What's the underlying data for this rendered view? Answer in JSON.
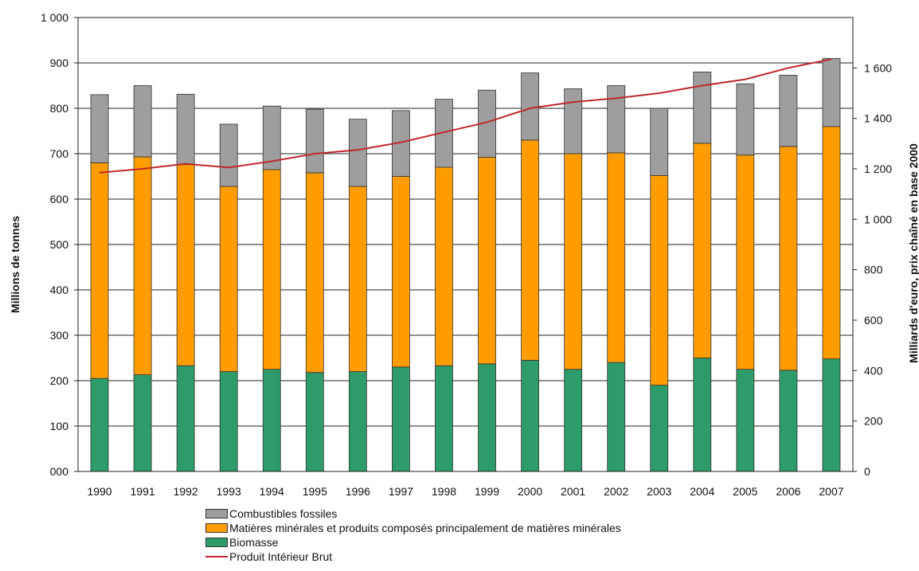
{
  "chart_data": {
    "type": "bar",
    "stacked": true,
    "categories": [
      "1990",
      "1991",
      "1992",
      "1993",
      "1994",
      "1995",
      "1996",
      "1997",
      "1998",
      "1999",
      "2000",
      "2001",
      "2002",
      "2003",
      "2004",
      "2005",
      "2006",
      "2007"
    ],
    "series": [
      {
        "name": "Biomasse",
        "color": "#2e9b6a",
        "values": [
          205,
          213,
          233,
          220,
          225,
          218,
          220,
          230,
          233,
          237,
          245,
          225,
          240,
          190,
          250,
          225,
          223,
          248
        ]
      },
      {
        "name": "Matières minérales et produits composés principalement de matières minérales",
        "color": "#ff9c00",
        "values": [
          475,
          480,
          443,
          408,
          440,
          440,
          408,
          420,
          437,
          455,
          485,
          475,
          462,
          462,
          473,
          472,
          493,
          512
        ]
      },
      {
        "name": "Combustibles fossiles",
        "color": "#9e9e9e",
        "values": [
          150,
          157,
          155,
          137,
          140,
          140,
          148,
          145,
          150,
          148,
          148,
          143,
          148,
          148,
          157,
          157,
          157,
          150
        ]
      }
    ],
    "line_series": {
      "name": "Produit Intérieur Brut",
      "color": "#c0282d",
      "axis": "right",
      "values": [
        1185,
        1200,
        1220,
        1205,
        1230,
        1260,
        1275,
        1305,
        1345,
        1385,
        1440,
        1465,
        1480,
        1500,
        1530,
        1555,
        1600,
        1635
      ]
    },
    "left_axis": {
      "label": "Millions de tonnes",
      "ylim": [
        0,
        1000
      ],
      "ticks": [
        0,
        100,
        200,
        300,
        400,
        500,
        600,
        700,
        800,
        900,
        1000
      ],
      "tick_labels": [
        "000",
        "100",
        "200",
        "300",
        "400",
        "500",
        "600",
        "700",
        "800",
        "900",
        "1 000"
      ]
    },
    "right_axis": {
      "label": "Milliards d'euro, prix chaîné en base 2000",
      "ylim": [
        0,
        1800
      ],
      "ticks": [
        0,
        200,
        400,
        600,
        800,
        1000,
        1200,
        1400,
        1600
      ],
      "tick_labels": [
        "0",
        "200",
        "400",
        "600",
        "800",
        "1 000",
        "1 200",
        "1 400",
        "1 600"
      ]
    },
    "grid": true,
    "legend": {
      "position": "bottom",
      "entries": [
        {
          "label": "Combustibles fossiles",
          "color": "#9e9e9e",
          "kind": "box"
        },
        {
          "label": "Matières minérales et produits  composés principalement de matières minérales",
          "color": "#ff9c00",
          "kind": "box"
        },
        {
          "label": "Biomasse",
          "color": "#2e9b6a",
          "kind": "box"
        },
        {
          "label": "Produit Intérieur Brut",
          "color": "#c0282d",
          "kind": "line"
        }
      ]
    }
  }
}
